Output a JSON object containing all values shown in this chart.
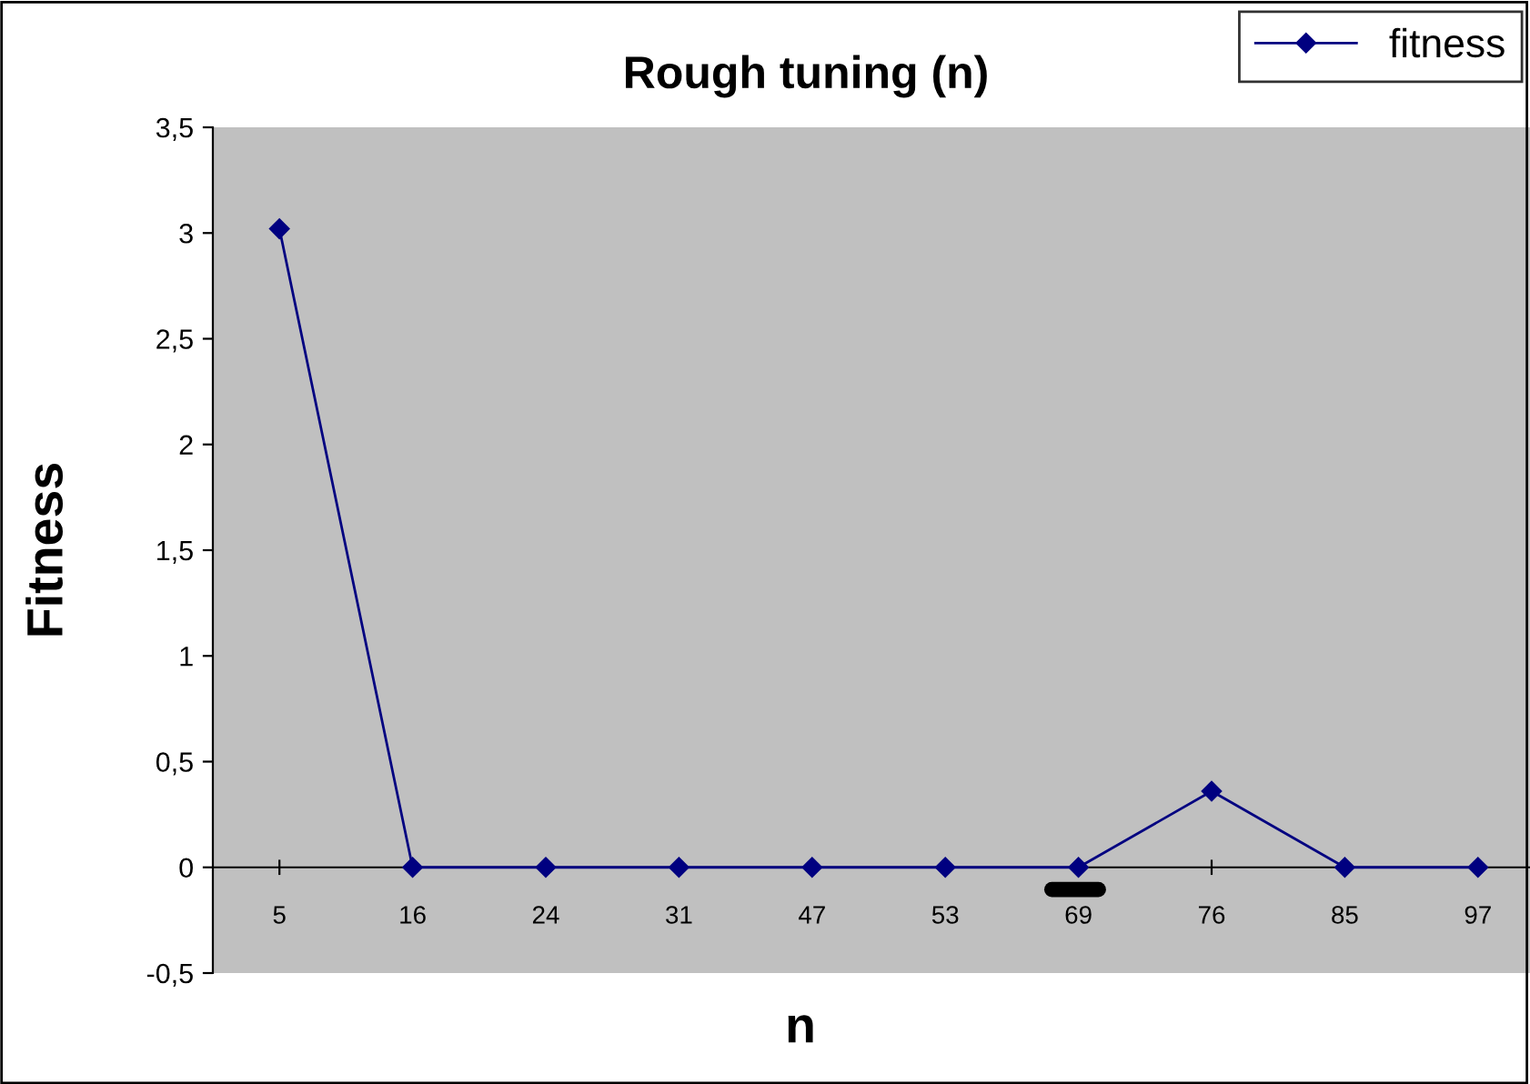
{
  "chart_data": {
    "type": "line",
    "title": "Rough tuning (n)",
    "xlabel": "n",
    "ylabel": "Fitness",
    "categories": [
      "5",
      "16",
      "24",
      "31",
      "47",
      "53",
      "69",
      "76",
      "85",
      "97"
    ],
    "series": [
      {
        "name": "fitness",
        "color": "#000080",
        "values": [
          3.02,
          0,
          0,
          0,
          0,
          0,
          0,
          0.36,
          0,
          0
        ]
      }
    ],
    "ylim": [
      -0.5,
      3.5
    ],
    "yticks": [
      {
        "value": -0.5,
        "label": "-0,5"
      },
      0,
      {
        "value": 0.5,
        "label": "0,5"
      },
      1,
      {
        "value": 1.5,
        "label": "1,5"
      },
      2,
      {
        "value": 2.5,
        "label": "2,5"
      },
      3,
      {
        "value": 3.5,
        "label": "3,5"
      }
    ],
    "grid": false,
    "legend": "top right",
    "marker": "diamond",
    "line_style": "solid"
  }
}
